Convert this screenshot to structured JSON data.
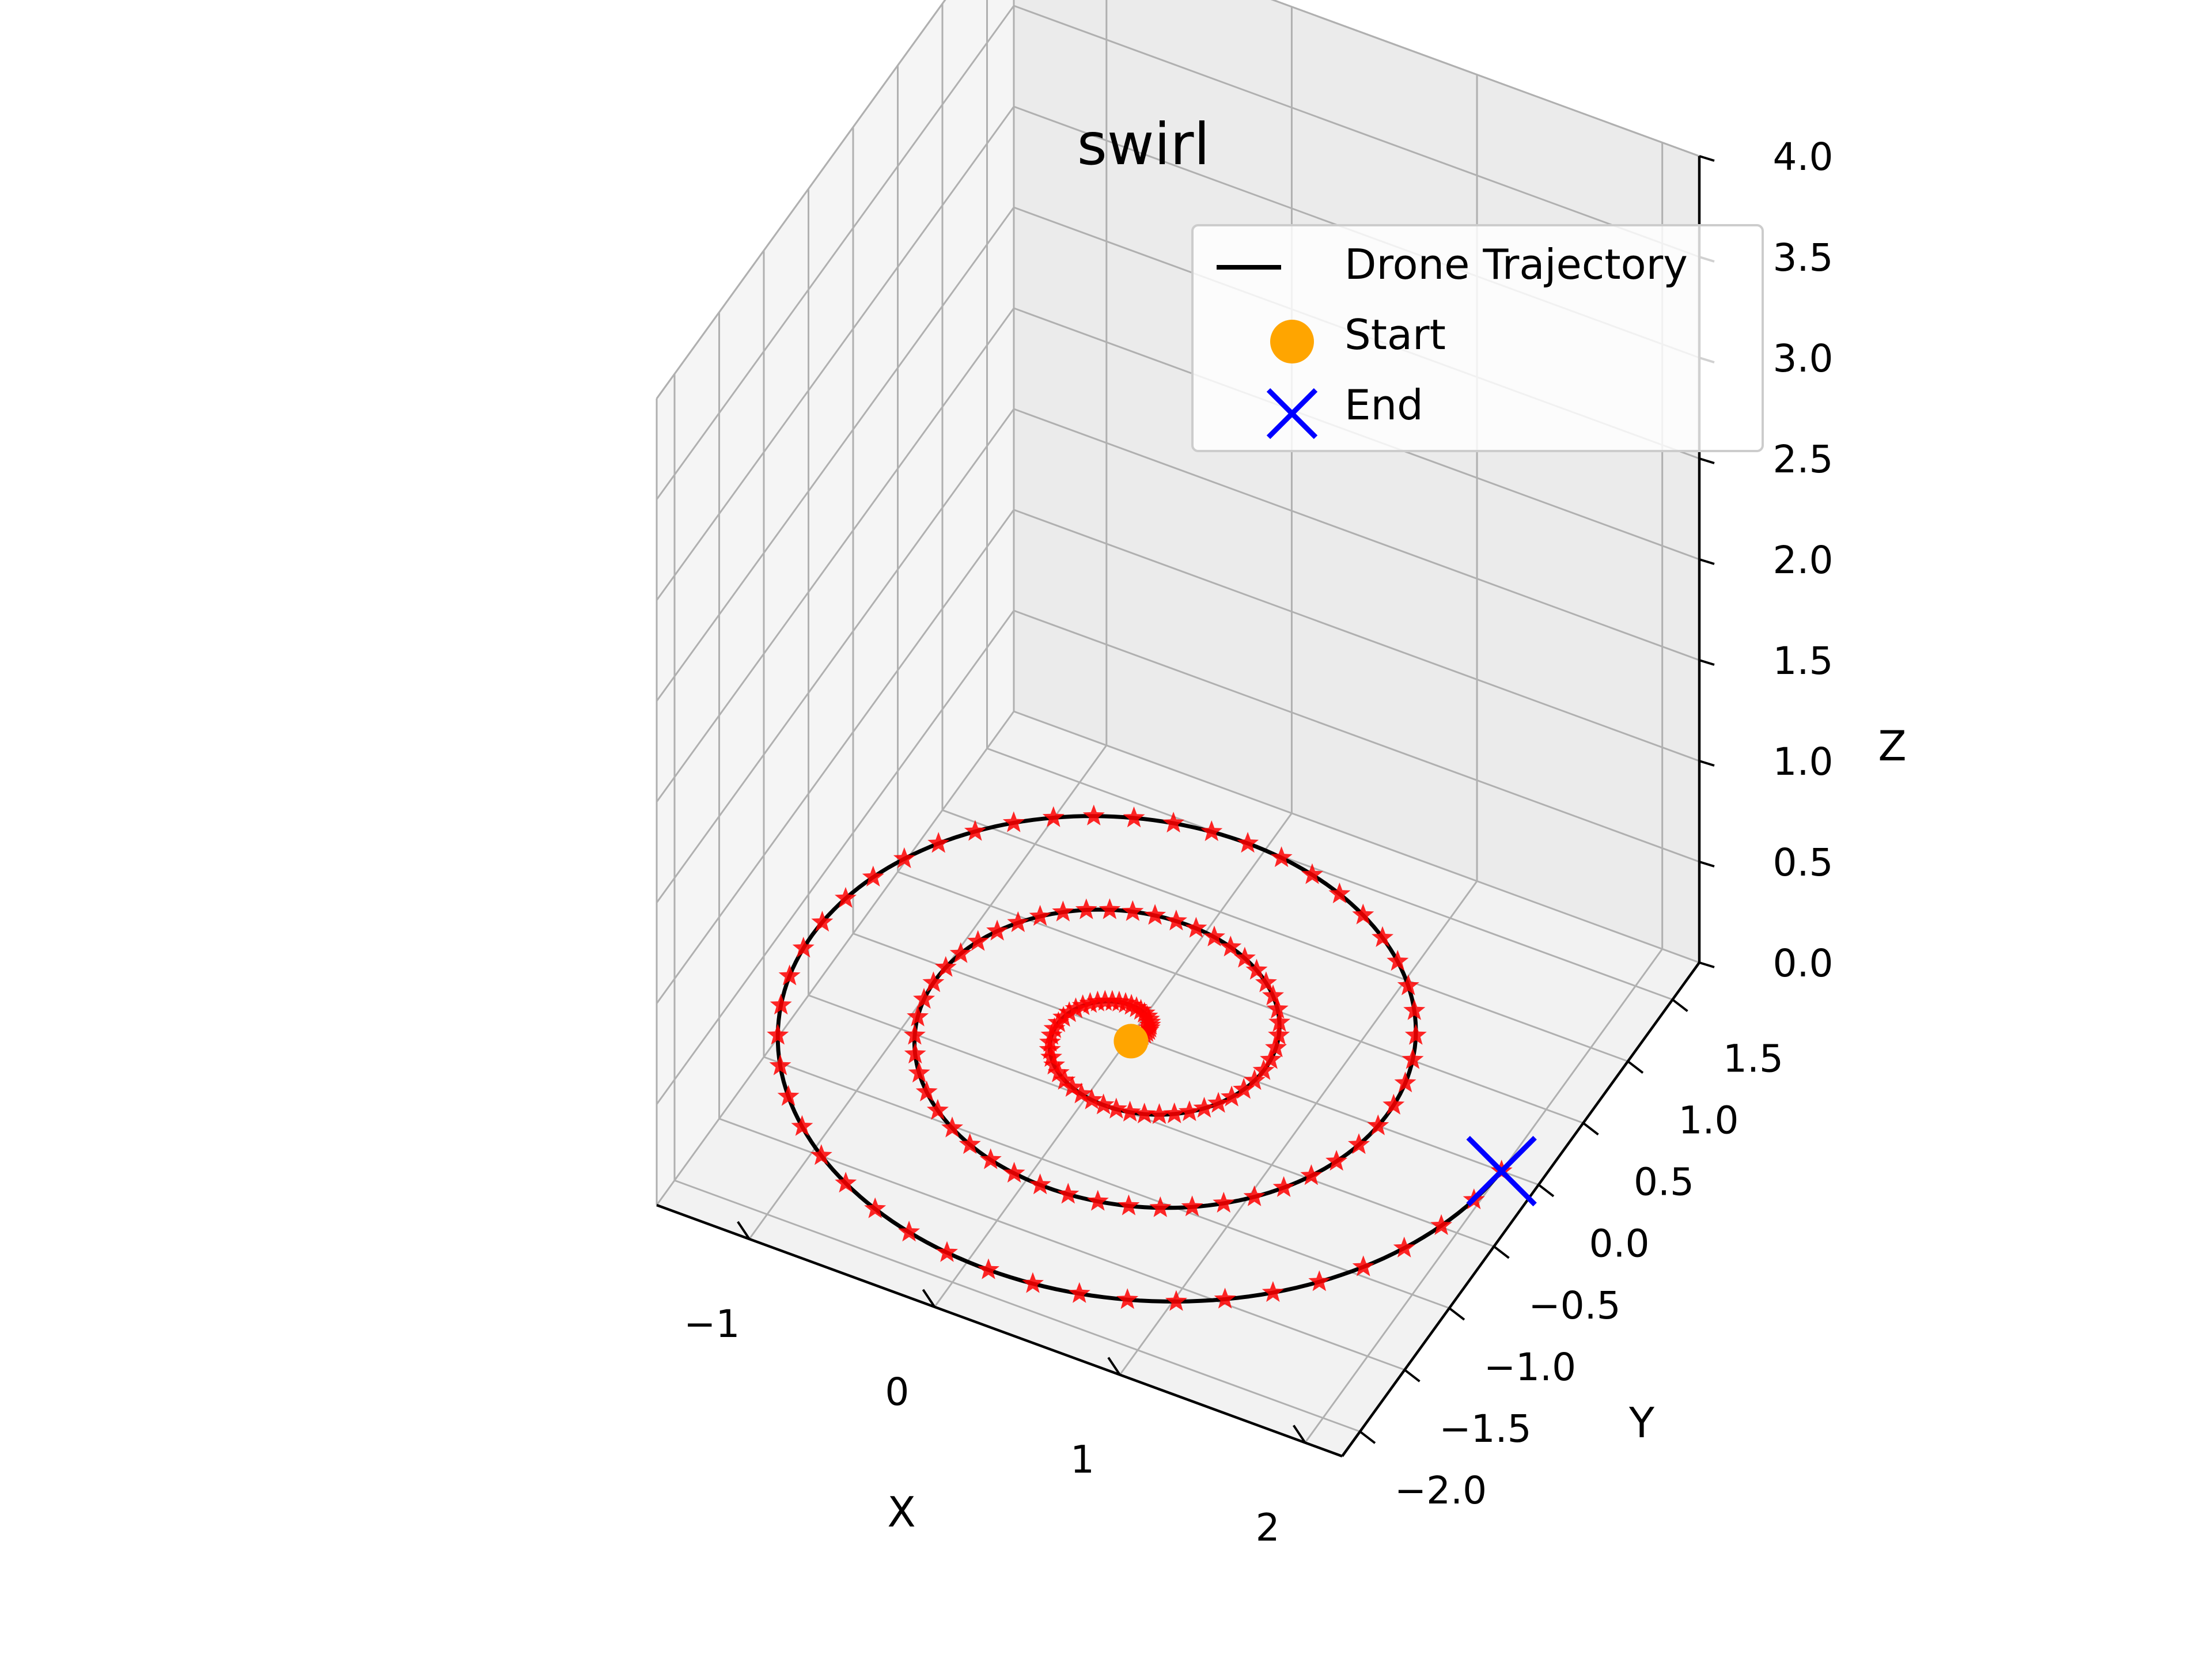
{
  "chart_data": {
    "type": "line3d",
    "title": "swirl",
    "xlabel": "X",
    "ylabel": "Y",
    "zlabel": "Z",
    "x_ticks": [
      "−1",
      "0",
      "1",
      "2"
    ],
    "y_ticks": [
      "−2.0",
      "−1.5",
      "−1.0",
      "−0.5",
      "0.0",
      "0.5",
      "1.0",
      "1.5"
    ],
    "z_ticks": [
      "0.0",
      "0.5",
      "1.0",
      "1.5",
      "2.0",
      "2.5",
      "3.0",
      "3.5",
      "4.0"
    ],
    "xlim": [
      -1.5,
      2.2
    ],
    "ylim": [
      -2.2,
      1.8
    ],
    "zlim": [
      0,
      4
    ],
    "grid": true,
    "legend_position": "top-right",
    "series": [
      {
        "name": "Drone Trajectory",
        "kind": "line",
        "color": "#000000",
        "description_shape": "planar spiral at z = 0, radius growing linearly from 0 to about 2 over 3 turns",
        "max_radius": 2.0,
        "turns": 3,
        "z": 0
      },
      {
        "name": "Waypoints",
        "kind": "markers",
        "marker": "star",
        "color": "#ff0000",
        "count": 150
      }
    ],
    "start": {
      "name": "Start",
      "x": 0.0,
      "y": 0.0,
      "z": 0.0,
      "color": "#ffa500"
    },
    "end": {
      "name": "End",
      "x": 2.0,
      "y": 0.0,
      "z": 0.0,
      "color": "#0000ff"
    }
  },
  "legend": {
    "items": [
      {
        "label": "Drone Trajectory",
        "icon": "line"
      },
      {
        "label": "Start",
        "icon": "circle"
      },
      {
        "label": "End",
        "icon": "x-marker"
      }
    ]
  }
}
